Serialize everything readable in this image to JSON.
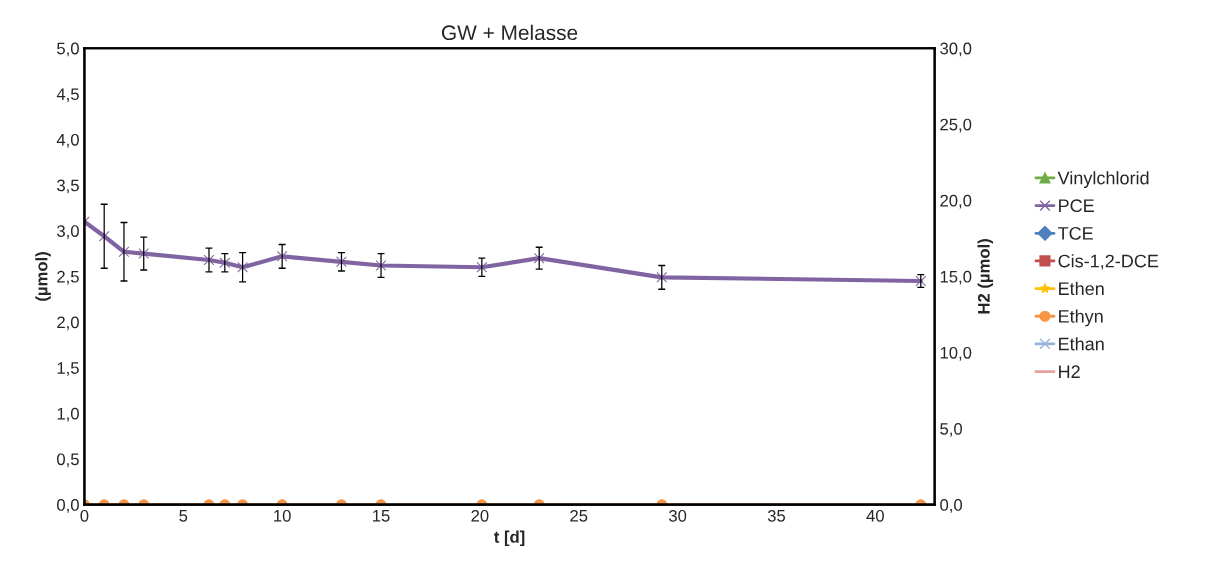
{
  "chart_data": {
    "type": "line",
    "title": "GW + Melasse",
    "xlabel": "t [d]",
    "ylabel": "(µmol)",
    "y2label": "H2 (µmol)",
    "x": [
      0,
      1,
      2,
      3,
      6.3,
      7.1,
      8,
      10,
      13,
      15,
      20.1,
      23,
      29.2,
      42.3
    ],
    "series": [
      {
        "name": "Vinylchlorid",
        "color": "#70ad47",
        "marker": "triangle",
        "values": [
          null,
          null,
          null,
          null,
          null,
          null,
          null,
          null,
          null,
          null,
          null,
          null,
          null,
          null
        ]
      },
      {
        "name": "PCE",
        "color": "#8064a2",
        "marker": "cross",
        "values": [
          3.1,
          2.94,
          2.77,
          2.75,
          2.68,
          2.65,
          2.6,
          2.72,
          2.66,
          2.62,
          2.6,
          2.7,
          2.49,
          2.45
        ],
        "errors": [
          null,
          0.35,
          0.32,
          0.18,
          0.13,
          0.1,
          0.16,
          0.13,
          0.1,
          0.13,
          0.1,
          0.12,
          0.13,
          0.07
        ]
      },
      {
        "name": "TCE",
        "color": "#4f81bd",
        "marker": "diamond",
        "values": [
          null,
          null,
          null,
          null,
          null,
          null,
          null,
          null,
          null,
          null,
          null,
          null,
          null,
          null
        ]
      },
      {
        "name": "Cis-1,2-DCE",
        "color": "#c0504d",
        "marker": "square",
        "values": [
          null,
          null,
          null,
          null,
          null,
          null,
          null,
          null,
          null,
          null,
          null,
          null,
          null,
          null
        ]
      },
      {
        "name": "Ethen",
        "color": "#ffc000",
        "marker": "star",
        "values": [
          null,
          null,
          null,
          null,
          null,
          null,
          null,
          null,
          null,
          null,
          null,
          null,
          null,
          null
        ]
      },
      {
        "name": "Ethyn",
        "color": "#f79646",
        "marker": "circle",
        "values": [
          0,
          0,
          0,
          0,
          0,
          0,
          0,
          0,
          0,
          0,
          0,
          0,
          0,
          0
        ]
      },
      {
        "name": "Ethan",
        "color": "#95b3d7",
        "marker": "cross",
        "values": [
          null,
          null,
          null,
          null,
          null,
          null,
          null,
          null,
          null,
          null,
          null,
          null,
          null,
          null
        ]
      },
      {
        "name": "H2",
        "color": "#e6a0a0",
        "marker": "none",
        "values": [
          null,
          null,
          null,
          null,
          null,
          null,
          null,
          null,
          null,
          null,
          null,
          null,
          null,
          null
        ]
      }
    ],
    "xlim": [
      0,
      43
    ],
    "xticks": [
      0,
      5,
      10,
      15,
      20,
      25,
      30,
      35,
      40
    ],
    "ylim": [
      0,
      5
    ],
    "yticks": [
      {
        "value": 0,
        "label": "0,0"
      },
      {
        "value": 0.5,
        "label": "0,5"
      },
      {
        "value": 1,
        "label": "1,0"
      },
      {
        "value": 1.5,
        "label": "1,5"
      },
      {
        "value": 2,
        "label": "2,0"
      },
      {
        "value": 2.5,
        "label": "2,5"
      },
      {
        "value": 3,
        "label": "3,0"
      },
      {
        "value": 3.5,
        "label": "3,5"
      },
      {
        "value": 4,
        "label": "4,0"
      },
      {
        "value": 4.5,
        "label": "4,5"
      },
      {
        "value": 5,
        "label": "5,0"
      }
    ],
    "y2lim": [
      0,
      30
    ],
    "y2ticks": [
      {
        "value": 0,
        "label": "0,0"
      },
      {
        "value": 5,
        "label": "5,0"
      },
      {
        "value": 10,
        "label": "10,0"
      },
      {
        "value": 15,
        "label": "15,0"
      },
      {
        "value": 20,
        "label": "20,0"
      },
      {
        "value": 25,
        "label": "25,0"
      },
      {
        "value": 30,
        "label": "30,0"
      }
    ],
    "grid": false,
    "legend": "right"
  }
}
